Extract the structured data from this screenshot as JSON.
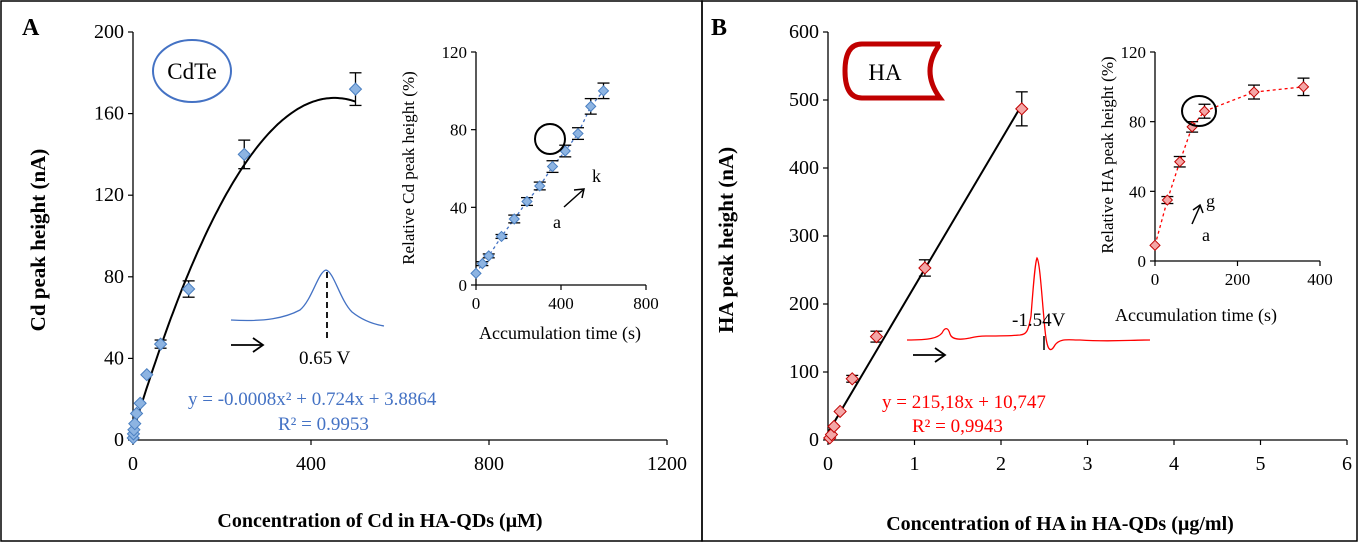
{
  "colors": {
    "blue_marker": "#8db4e2",
    "blue_marker_edge": "#4a7fc1",
    "blue_text": "#4472c4",
    "red_marker": "#f4a6a6",
    "red_marker_edge": "#c00000",
    "red_text": "#ff0000",
    "dark_red": "#c00000"
  },
  "chart_data": [
    {
      "panel": "A",
      "type": "scatter",
      "badge": "CdTe",
      "xlabel": "Concentration of Cd in HA-QDs (μM)",
      "ylabel": "Cd peak height  (nA)",
      "xlim": [
        0,
        1200
      ],
      "ylim": [
        0,
        200
      ],
      "xticks": [
        "0",
        "400",
        "800",
        "1200"
      ],
      "yticks": [
        "0",
        "40",
        "80",
        "120",
        "160",
        "200"
      ],
      "points": [
        {
          "x": 0.5,
          "y": 1,
          "err": 0
        },
        {
          "x": 1,
          "y": 3,
          "err": 0
        },
        {
          "x": 2,
          "y": 5,
          "err": 0
        },
        {
          "x": 4,
          "y": 8,
          "err": 0
        },
        {
          "x": 8,
          "y": 13,
          "err": 0
        },
        {
          "x": 16,
          "y": 18,
          "err": 0
        },
        {
          "x": 31,
          "y": 32,
          "err": 0
        },
        {
          "x": 62,
          "y": 47,
          "err": 2
        },
        {
          "x": 125,
          "y": 74,
          "err": 4
        },
        {
          "x": 250,
          "y": 140,
          "err": 7
        },
        {
          "x": 500,
          "y": 172,
          "err": 8
        }
      ],
      "fit": {
        "a": -0.0008,
        "b": 0.724,
        "c": 3.8864,
        "x_range": [
          0,
          500
        ],
        "equation": "y = -0.0008x² + 0.724x + 3.8864",
        "r2": "R² = 0.9953"
      },
      "peak_label": "0.65 V",
      "inset": {
        "type": "line",
        "xlabel": "Accumulation time (s)",
        "ylabel": "Relative Cd peak height  (%)",
        "xlim": [
          0,
          800
        ],
        "ylim": [
          0,
          120
        ],
        "xticks": [
          "0",
          "400",
          "800"
        ],
        "yticks": [
          "0",
          "40",
          "80",
          "120"
        ],
        "points": [
          {
            "x": 0,
            "y": 6,
            "err": 0
          },
          {
            "x": 30,
            "y": 11,
            "err": 1
          },
          {
            "x": 60,
            "y": 15,
            "err": 1
          },
          {
            "x": 120,
            "y": 25,
            "err": 1
          },
          {
            "x": 180,
            "y": 34,
            "err": 2
          },
          {
            "x": 240,
            "y": 43,
            "err": 2
          },
          {
            "x": 300,
            "y": 51,
            "err": 2
          },
          {
            "x": 360,
            "y": 61,
            "err": 3
          },
          {
            "x": 420,
            "y": 69,
            "err": 3
          },
          {
            "x": 480,
            "y": 78,
            "err": 3
          },
          {
            "x": 540,
            "y": 92,
            "err": 4
          },
          {
            "x": 600,
            "y": 100,
            "err": 4
          }
        ],
        "circled_index": 7,
        "arrow_start": "a",
        "arrow_end": "k"
      }
    },
    {
      "panel": "B",
      "type": "scatter",
      "badge": "HA",
      "xlabel": "Concentration of HA in HA-QDs (µg/ml)",
      "ylabel": "HA peak height  (nA)",
      "xlim": [
        0,
        6
      ],
      "ylim": [
        0,
        600
      ],
      "xticks": [
        "0",
        "1",
        "2",
        "3",
        "4",
        "5",
        "6"
      ],
      "yticks": [
        "0",
        "100",
        "200",
        "300",
        "400",
        "500",
        "600"
      ],
      "points": [
        {
          "x": 0.02,
          "y": 3,
          "err": 0
        },
        {
          "x": 0.04,
          "y": 8,
          "err": 0
        },
        {
          "x": 0.07,
          "y": 20,
          "err": 0
        },
        {
          "x": 0.14,
          "y": 42,
          "err": 0
        },
        {
          "x": 0.28,
          "y": 90,
          "err": 5
        },
        {
          "x": 0.56,
          "y": 152,
          "err": 8
        },
        {
          "x": 1.12,
          "y": 253,
          "err": 12
        },
        {
          "x": 2.24,
          "y": 487,
          "err": 25
        }
      ],
      "fit": {
        "slope": 215.18,
        "intercept": 10.747,
        "x_range": [
          0,
          2.24
        ],
        "equation": "y = 215,18x + 10,747",
        "r2": "R² = 0,9943"
      },
      "peak_label": "-1.54V",
      "inset": {
        "type": "line",
        "xlabel": "Accumulation time (s)",
        "ylabel": "Relative HA peak height  (%)",
        "xlim": [
          0,
          400
        ],
        "ylim": [
          0,
          120
        ],
        "xticks": [
          "0",
          "200",
          "400"
        ],
        "yticks": [
          "0",
          "40",
          "80",
          "120"
        ],
        "points": [
          {
            "x": 0,
            "y": 9,
            "err": 0
          },
          {
            "x": 30,
            "y": 35,
            "err": 2
          },
          {
            "x": 60,
            "y": 57,
            "err": 3
          },
          {
            "x": 90,
            "y": 77,
            "err": 3
          },
          {
            "x": 120,
            "y": 86,
            "err": 4
          },
          {
            "x": 240,
            "y": 97,
            "err": 4
          },
          {
            "x": 360,
            "y": 100,
            "err": 5
          }
        ],
        "circled_index": 4,
        "arrow_start": "a",
        "arrow_end": "g"
      }
    }
  ]
}
